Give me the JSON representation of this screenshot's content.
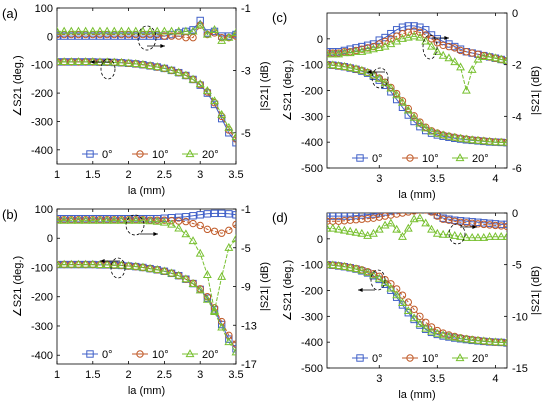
{
  "colors": {
    "s0": "#4060c8",
    "s10": "#c05a28",
    "s20": "#78c030",
    "grey": "#777777"
  },
  "chart_data": [
    {
      "panel": "(a)",
      "type": "line",
      "xlabel": "la (mm)",
      "ylabel_left": "∠S21 (deg.)",
      "ylabel_right": "|S21| (dB)",
      "xlim": [
        1,
        3.5
      ],
      "ylim_left": [
        -450,
        100
      ],
      "ylim_right": [
        -6,
        -1
      ],
      "xticks": [
        "1",
        "1.5",
        "2",
        "2.5",
        "3",
        "3.5"
      ],
      "yticks_left": [
        "100",
        "0",
        "-100",
        "-200",
        "-300",
        "-400"
      ],
      "yticks_right": [
        "-1",
        "-3",
        "-5"
      ],
      "legend": [
        "0°",
        "10°",
        "20°"
      ],
      "x": [
        1,
        1.1,
        1.2,
        1.3,
        1.4,
        1.5,
        1.6,
        1.7,
        1.8,
        1.9,
        2.0,
        2.1,
        2.2,
        2.3,
        2.4,
        2.5,
        2.6,
        2.7,
        2.8,
        2.9,
        3.0,
        3.1,
        3.2,
        3.3,
        3.4,
        3.5
      ],
      "series": [
        {
          "name": "0°",
          "axis": "left",
          "values": [
            -90,
            -90,
            -90,
            -90,
            -90,
            -90,
            -91,
            -91,
            -92,
            -93,
            -95,
            -97,
            -100,
            -104,
            -108,
            -113,
            -120,
            -128,
            -138,
            -152,
            -172,
            -200,
            -240,
            -290,
            -340,
            -375
          ]
        },
        {
          "name": "10°",
          "axis": "left",
          "values": [
            -90,
            -90,
            -90,
            -90,
            -90,
            -90,
            -91,
            -91,
            -92,
            -93,
            -95,
            -97,
            -100,
            -104,
            -108,
            -113,
            -120,
            -128,
            -138,
            -152,
            -170,
            -196,
            -234,
            -282,
            -330,
            -362
          ]
        },
        {
          "name": "20°",
          "axis": "left",
          "values": [
            -90,
            -90,
            -90,
            -90,
            -90,
            -90,
            -91,
            -91,
            -92,
            -93,
            -95,
            -97,
            -100,
            -104,
            -108,
            -113,
            -120,
            -128,
            -138,
            -152,
            -168,
            -192,
            -228,
            -276,
            -322,
            -355
          ]
        },
        {
          "name": "0°",
          "axis": "right",
          "values": [
            -1.9,
            -1.9,
            -1.9,
            -1.9,
            -1.9,
            -1.9,
            -1.9,
            -1.9,
            -1.9,
            -1.9,
            -1.9,
            -1.9,
            -1.9,
            -1.9,
            -1.9,
            -1.9,
            -1.85,
            -1.8,
            -1.75,
            -1.7,
            -1.4,
            -1.8,
            -1.75,
            -1.9,
            -1.9,
            -1.85
          ]
        },
        {
          "name": "10°",
          "axis": "right",
          "values": [
            -1.85,
            -1.85,
            -1.85,
            -1.85,
            -1.85,
            -1.85,
            -1.85,
            -1.85,
            -1.85,
            -1.85,
            -1.85,
            -1.85,
            -1.85,
            -1.85,
            -1.85,
            -1.9,
            -1.9,
            -1.9,
            -1.95,
            -1.95,
            -1.55,
            -1.85,
            -1.8,
            -1.95,
            -1.95,
            -1.9
          ]
        },
        {
          "name": "20°",
          "axis": "right",
          "values": [
            -1.75,
            -1.75,
            -1.75,
            -1.75,
            -1.75,
            -1.75,
            -1.75,
            -1.75,
            -1.75,
            -1.75,
            -1.75,
            -1.75,
            -1.75,
            -1.75,
            -1.75,
            -1.75,
            -1.75,
            -1.75,
            -1.75,
            -1.75,
            -1.55,
            -1.85,
            -1.7,
            -2.05,
            -1.95,
            -1.8
          ]
        }
      ]
    },
    {
      "panel": "(b)",
      "type": "line",
      "xlabel": "la (mm)",
      "ylabel_left": "∠S21 (deg.)",
      "ylabel_right": "|S21| (dB)",
      "xlim": [
        1,
        3.5
      ],
      "ylim_left": [
        -430,
        100
      ],
      "ylim_right": [
        -17,
        -1
      ],
      "xticks": [
        "1",
        "1.5",
        "2",
        "2.5",
        "3",
        "3.5"
      ],
      "yticks_left": [
        "100",
        "0",
        "-100",
        "-200",
        "-300",
        "-400"
      ],
      "yticks_right": [
        "-1",
        "-5",
        "-9",
        "-13",
        "-17"
      ],
      "legend": [
        "0°",
        "10°",
        "20°"
      ],
      "x": [
        1,
        1.1,
        1.2,
        1.3,
        1.4,
        1.5,
        1.6,
        1.7,
        1.8,
        1.9,
        2.0,
        2.1,
        2.2,
        2.3,
        2.4,
        2.5,
        2.6,
        2.7,
        2.8,
        2.9,
        3.0,
        3.1,
        3.2,
        3.3,
        3.4,
        3.5
      ],
      "series": [
        {
          "name": "0°",
          "axis": "left",
          "values": [
            -90,
            -90,
            -90,
            -90,
            -90,
            -90,
            -91,
            -91,
            -92,
            -93,
            -95,
            -97,
            -100,
            -104,
            -108,
            -113,
            -120,
            -128,
            -140,
            -155,
            -175,
            -205,
            -245,
            -295,
            -345,
            -378
          ]
        },
        {
          "name": "10°",
          "axis": "left",
          "values": [
            -90,
            -90,
            -90,
            -90,
            -90,
            -90,
            -91,
            -91,
            -92,
            -93,
            -95,
            -97,
            -100,
            -104,
            -108,
            -113,
            -120,
            -128,
            -140,
            -154,
            -173,
            -200,
            -238,
            -285,
            -332,
            -362
          ]
        },
        {
          "name": "20°",
          "axis": "left",
          "values": [
            -90,
            -90,
            -90,
            -90,
            -90,
            -90,
            -91,
            -91,
            -92,
            -93,
            -95,
            -97,
            -100,
            -104,
            -108,
            -113,
            -120,
            -128,
            -140,
            -156,
            -178,
            -210,
            -252,
            -305,
            -355,
            -390
          ]
        },
        {
          "name": "0°",
          "axis": "right",
          "values": [
            -2.0,
            -2.0,
            -2.0,
            -2.0,
            -2.0,
            -2.0,
            -2.0,
            -2.0,
            -2.0,
            -2.0,
            -2.0,
            -2.0,
            -2.0,
            -2.0,
            -2.0,
            -1.95,
            -1.9,
            -1.85,
            -1.8,
            -1.7,
            -1.6,
            -1.5,
            -1.45,
            -1.45,
            -1.5,
            -1.6
          ]
        },
        {
          "name": "10°",
          "axis": "right",
          "values": [
            -2.1,
            -2.1,
            -2.1,
            -2.1,
            -2.1,
            -2.1,
            -2.1,
            -2.1,
            -2.1,
            -2.1,
            -2.1,
            -2.1,
            -2.1,
            -2.15,
            -2.15,
            -2.15,
            -2.2,
            -2.25,
            -2.3,
            -2.5,
            -2.7,
            -3.1,
            -3.3,
            -3.5,
            -3.2,
            -2.6
          ]
        },
        {
          "name": "20°",
          "axis": "right",
          "values": [
            -2.2,
            -2.2,
            -2.2,
            -2.2,
            -2.2,
            -2.2,
            -2.2,
            -2.2,
            -2.2,
            -2.2,
            -2.2,
            -2.2,
            -2.2,
            -2.25,
            -2.3,
            -2.4,
            -2.6,
            -3.0,
            -3.6,
            -4.3,
            -5.6,
            -7.8,
            -11.5,
            -8.0,
            -5.0,
            -4.1
          ]
        }
      ]
    },
    {
      "panel": "(c)",
      "type": "line",
      "xlabel": "la (mm)",
      "ylabel_left": "∠S21 (deg.)",
      "ylabel_right": "|S21| (dB)",
      "xlim": [
        2.55,
        4.1
      ],
      "ylim_left": [
        -500,
        100
      ],
      "ylim_right": [
        -6,
        0
      ],
      "xticks": [
        "3",
        "3.5",
        "4"
      ],
      "yticks_left": [
        "0",
        "-100",
        "-200",
        "-300",
        "-400",
        "-500"
      ],
      "yticks_right": [
        "0",
        "-2",
        "-4",
        "-6"
      ],
      "legend": [
        "0°",
        "10°",
        "20°"
      ],
      "x": [
        2.55,
        2.6,
        2.65,
        2.7,
        2.75,
        2.8,
        2.85,
        2.9,
        2.95,
        3.0,
        3.05,
        3.1,
        3.15,
        3.2,
        3.25,
        3.3,
        3.35,
        3.4,
        3.45,
        3.5,
        3.55,
        3.6,
        3.65,
        3.7,
        3.75,
        3.8,
        3.85,
        3.9,
        3.95,
        4.0,
        4.05,
        4.1
      ],
      "series": [
        {
          "name": "0°",
          "axis": "left",
          "values": [
            -100,
            -102,
            -105,
            -108,
            -113,
            -118,
            -125,
            -133,
            -145,
            -160,
            -180,
            -205,
            -235,
            -265,
            -295,
            -320,
            -340,
            -355,
            -365,
            -372,
            -377,
            -381,
            -385,
            -388,
            -391,
            -393,
            -395,
            -397,
            -399,
            -400,
            -401,
            -402
          ]
        },
        {
          "name": "10°",
          "axis": "left",
          "values": [
            -100,
            -102,
            -105,
            -108,
            -112,
            -117,
            -123,
            -130,
            -140,
            -152,
            -168,
            -188,
            -212,
            -240,
            -270,
            -298,
            -322,
            -342,
            -356,
            -365,
            -372,
            -377,
            -381,
            -385,
            -388,
            -391,
            -393,
            -395,
            -397,
            -399,
            -400,
            -401
          ]
        },
        {
          "name": "20°",
          "axis": "left",
          "values": [
            -100,
            -102,
            -105,
            -108,
            -112,
            -117,
            -123,
            -131,
            -141,
            -154,
            -171,
            -192,
            -218,
            -247,
            -277,
            -305,
            -328,
            -346,
            -359,
            -367,
            -373,
            -378,
            -382,
            -386,
            -389,
            -392,
            -394,
            -396,
            -398,
            -400,
            -401,
            -402
          ]
        },
        {
          "name": "0°",
          "axis": "right",
          "values": [
            -1.5,
            -1.5,
            -1.5,
            -1.45,
            -1.4,
            -1.35,
            -1.3,
            -1.25,
            -1.2,
            -1.05,
            -0.95,
            -0.8,
            -0.65,
            -0.55,
            -0.5,
            -0.5,
            -0.55,
            -0.65,
            -0.85,
            -1.0,
            -1.1,
            -1.2,
            -1.3,
            -1.4,
            -1.5,
            -1.55,
            -1.6,
            -1.65,
            -1.7,
            -1.75,
            -1.8,
            -1.85
          ]
        },
        {
          "name": "10°",
          "axis": "right",
          "values": [
            -1.55,
            -1.55,
            -1.55,
            -1.5,
            -1.5,
            -1.45,
            -1.4,
            -1.35,
            -1.3,
            -1.2,
            -1.1,
            -1.0,
            -0.9,
            -0.8,
            -0.75,
            -0.7,
            -0.75,
            -0.85,
            -1.0,
            -1.15,
            -1.25,
            -1.3,
            -1.35,
            -1.45,
            -1.5,
            -1.55,
            -1.6,
            -1.65,
            -1.7,
            -1.75,
            -1.8,
            -1.85
          ]
        },
        {
          "name": "20°",
          "axis": "right",
          "values": [
            -1.6,
            -1.6,
            -1.6,
            -1.55,
            -1.55,
            -1.5,
            -1.5,
            -1.45,
            -1.4,
            -1.35,
            -1.3,
            -1.2,
            -1.1,
            -1.0,
            -0.95,
            -0.9,
            -0.95,
            -1.1,
            -1.3,
            -1.5,
            -1.65,
            -1.75,
            -1.9,
            -2.1,
            -3.0,
            -2.2,
            -1.8,
            -1.7,
            -1.7,
            -1.75,
            -1.8,
            -1.85
          ]
        }
      ]
    },
    {
      "panel": "(d)",
      "type": "line",
      "xlabel": "la (mm)",
      "ylabel_left": "∠S21 (deg.)",
      "ylabel_right": "|S21| (dB)",
      "xlim": [
        2.55,
        4.1
      ],
      "ylim_left": [
        -500,
        100
      ],
      "ylim_right": [
        -15,
        0
      ],
      "xticks": [
        "3",
        "3.5",
        "4"
      ],
      "yticks_left": [
        "0",
        "-100",
        "-200",
        "-300",
        "-400",
        "-500"
      ],
      "yticks_right": [
        "0",
        "-5",
        "-10",
        "-15"
      ],
      "legend": [
        "0°",
        "10°",
        "20°"
      ],
      "x": [
        2.55,
        2.6,
        2.65,
        2.7,
        2.75,
        2.8,
        2.85,
        2.9,
        2.95,
        3.0,
        3.05,
        3.1,
        3.15,
        3.2,
        3.25,
        3.3,
        3.35,
        3.4,
        3.45,
        3.5,
        3.55,
        3.6,
        3.65,
        3.7,
        3.75,
        3.8,
        3.85,
        3.9,
        3.95,
        4.0,
        4.05,
        4.1
      ],
      "series": [
        {
          "name": "0°",
          "axis": "left",
          "values": [
            -100,
            -102,
            -105,
            -108,
            -112,
            -117,
            -124,
            -132,
            -143,
            -157,
            -176,
            -199,
            -226,
            -256,
            -286,
            -312,
            -334,
            -350,
            -362,
            -370,
            -376,
            -380,
            -384,
            -387,
            -390,
            -393,
            -395,
            -397,
            -399,
            -400,
            -401,
            -403
          ]
        },
        {
          "name": "10°",
          "axis": "left",
          "values": [
            -100,
            -102,
            -104,
            -107,
            -111,
            -115,
            -120,
            -127,
            -135,
            -145,
            -158,
            -174,
            -194,
            -218,
            -245,
            -273,
            -300,
            -323,
            -341,
            -355,
            -365,
            -372,
            -378,
            -383,
            -387,
            -390,
            -393,
            -396,
            -398,
            -400,
            -401,
            -402
          ]
        },
        {
          "name": "20°",
          "axis": "left",
          "values": [
            -100,
            -102,
            -105,
            -108,
            -112,
            -117,
            -123,
            -131,
            -141,
            -154,
            -171,
            -192,
            -218,
            -248,
            -279,
            -307,
            -330,
            -347,
            -359,
            -367,
            -373,
            -378,
            -382,
            -386,
            -389,
            -392,
            -394,
            -396,
            -398,
            -400,
            -401,
            -402
          ]
        },
        {
          "name": "0°",
          "axis": "right",
          "values": [
            -0.3,
            -0.3,
            -0.3,
            -0.3,
            -0.3,
            -0.25,
            -0.2,
            -0.15,
            -0.1,
            0.0,
            0.1,
            0.2,
            0.3,
            0.4,
            0.5,
            0.6,
            0.6,
            0.5,
            0.2,
            -0.2,
            -0.5,
            -0.6,
            -0.7,
            -0.75,
            -0.8,
            -0.85,
            -0.9,
            -0.95,
            -1.0,
            -1.05,
            -1.1,
            -1.1
          ]
        },
        {
          "name": "10°",
          "axis": "right",
          "values": [
            -0.8,
            -0.8,
            -0.8,
            -0.75,
            -0.7,
            -0.65,
            -0.6,
            -0.55,
            -0.5,
            -0.4,
            -0.3,
            -0.2,
            -0.1,
            0.0,
            0.1,
            0.2,
            0.3,
            0.3,
            0.1,
            -0.3,
            -0.6,
            -0.7,
            -0.8,
            -0.9,
            -0.95,
            -1.0,
            -1.05,
            -1.1,
            -1.15,
            -1.2,
            -1.25,
            -1.3
          ]
        },
        {
          "name": "20°",
          "axis": "right",
          "values": [
            -1.5,
            -1.5,
            -1.6,
            -1.7,
            -1.8,
            -1.9,
            -2.0,
            -2.2,
            -2.0,
            -1.6,
            -1.2,
            -1.0,
            -1.6,
            -2.3,
            -1.5,
            -0.6,
            -0.5,
            -1.0,
            -1.6,
            -2.0,
            -2.1,
            -2.1,
            -2.2,
            -2.3,
            -2.4,
            -2.4,
            -2.4,
            -2.4,
            -2.3,
            -2.3,
            -2.3,
            -2.3
          ]
        }
      ]
    }
  ]
}
